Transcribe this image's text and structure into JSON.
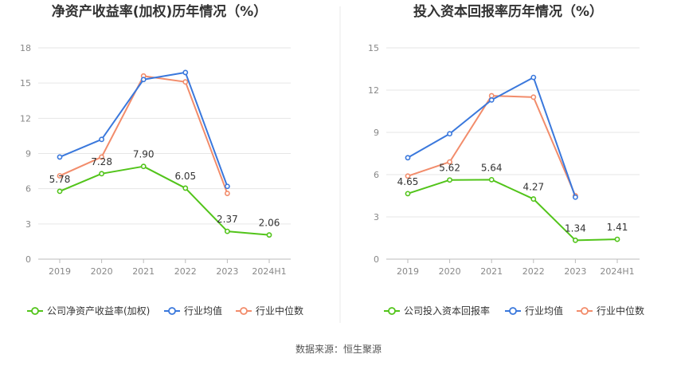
{
  "colors": {
    "company": "#52c41a",
    "avg": "#3a78dc",
    "median": "#f28c6b",
    "grid": "#e6e6e6",
    "axis": "#bbbbbb",
    "divider": "#e8e8e8"
  },
  "source": "数据来源：恒生聚源",
  "chart_data": [
    {
      "type": "line",
      "title": "净资产收益率(加权)历年情况（%）",
      "categories": [
        "2019",
        "2020",
        "2021",
        "2022",
        "2023",
        "2024H1"
      ],
      "ylim": [
        0,
        18
      ],
      "yticks": [
        "0",
        "3",
        "6",
        "9",
        "12",
        "15",
        "18"
      ],
      "series": [
        {
          "name": "公司净资产收益率(加权)",
          "role": "company",
          "values": [
            5.78,
            7.28,
            7.9,
            6.05,
            2.37,
            2.06
          ],
          "labels": [
            "5.78",
            "7.28",
            "7.90",
            "6.05",
            "2.37",
            "2.06"
          ]
        },
        {
          "name": "行业均值",
          "role": "avg",
          "values": [
            8.7,
            10.2,
            15.3,
            15.9,
            6.2,
            null
          ]
        },
        {
          "name": "行业中位数",
          "role": "median",
          "values": [
            7.1,
            8.7,
            15.6,
            15.1,
            5.6,
            null
          ]
        }
      ],
      "grid": true,
      "legend": "bottom"
    },
    {
      "type": "line",
      "title": "投入资本回报率历年情况（%）",
      "categories": [
        "2019",
        "2020",
        "2021",
        "2022",
        "2023",
        "2024H1"
      ],
      "ylim": [
        0,
        15
      ],
      "yticks": [
        "0",
        "3",
        "6",
        "9",
        "12",
        "15"
      ],
      "series": [
        {
          "name": "公司投入资本回报率",
          "role": "company",
          "values": [
            4.65,
            5.62,
            5.64,
            4.27,
            1.34,
            1.41
          ],
          "labels": [
            "4.65",
            "5.62",
            "5.64",
            "4.27",
            "1.34",
            "1.41"
          ]
        },
        {
          "name": "行业均值",
          "role": "avg",
          "values": [
            7.2,
            8.9,
            11.3,
            12.9,
            4.4,
            null
          ]
        },
        {
          "name": "行业中位数",
          "role": "median",
          "values": [
            5.9,
            6.9,
            11.6,
            11.5,
            4.5,
            null
          ]
        }
      ],
      "grid": true,
      "legend": "bottom"
    }
  ]
}
